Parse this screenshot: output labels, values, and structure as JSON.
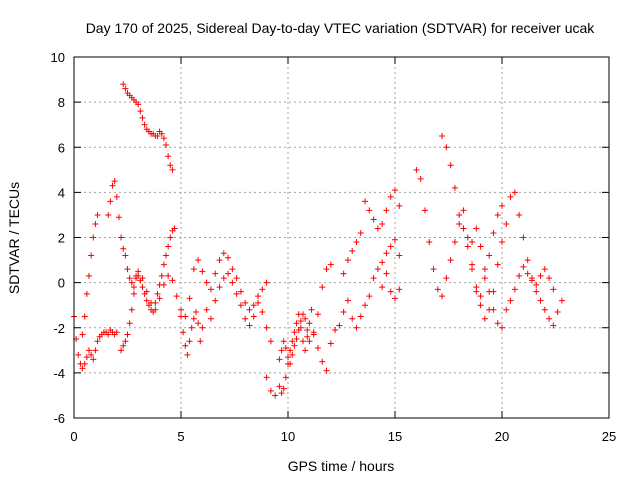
{
  "chart_data": {
    "type": "scatter",
    "title": "Day 170 of 2025, Sidereal Day-to-day VTEC variation (SDTVAR) for receiver ucak",
    "xlabel": "GPS time / hours",
    "ylabel": "SDTVAR / TECUs",
    "xlim": [
      0,
      25
    ],
    "ylim": [
      -6,
      10
    ],
    "xticks": [
      0,
      5,
      10,
      15,
      20,
      25
    ],
    "yticks": [
      -6,
      -4,
      -2,
      0,
      2,
      4,
      6,
      8,
      10
    ],
    "grid": true,
    "marker": "+",
    "series": [
      {
        "name": "SDTVAR",
        "color": "#ff0000",
        "segments": [
          {
            "x": [
              0.0,
              0.1,
              0.2,
              0.3,
              0.4,
              0.5,
              0.6,
              0.7,
              0.8,
              0.9,
              1.0,
              1.1,
              1.2,
              1.3,
              1.4,
              1.5,
              1.6,
              1.7,
              1.8,
              1.9,
              2.0
            ],
            "y": [
              -1.5,
              -2.5,
              -3.2,
              -3.6,
              -3.8,
              -3.6,
              -3.3,
              -3.0,
              -3.2,
              -3.4,
              -3.0,
              -2.6,
              -2.4,
              -2.3,
              -2.2,
              -2.2,
              -2.3,
              -2.1,
              -2.2,
              -2.3,
              -2.2
            ]
          },
          {
            "x": [
              0.4,
              0.5,
              0.6,
              0.7,
              0.8,
              0.9,
              1.0,
              1.1
            ],
            "y": [
              -2.3,
              -1.5,
              -0.5,
              0.3,
              1.2,
              2.0,
              2.6,
              3.0
            ]
          },
          {
            "x": [
              1.6,
              1.7,
              1.8,
              1.9,
              2.0,
              2.1,
              2.2,
              2.3
            ],
            "y": [
              3.0,
              3.6,
              4.3,
              4.5,
              3.8,
              2.9,
              2.0,
              1.5
            ]
          },
          {
            "x": [
              2.2,
              2.3,
              2.4,
              2.5,
              2.6,
              2.7,
              2.8,
              2.9,
              3.0,
              3.1,
              3.2,
              3.3,
              3.4,
              3.5,
              3.6,
              3.7,
              3.8,
              3.9,
              4.0,
              4.1,
              4.2,
              4.3,
              4.4,
              4.5,
              4.6,
              4.7
            ],
            "y": [
              -3.0,
              -2.8,
              -2.6,
              -2.3,
              -1.8,
              -1.2,
              -0.5,
              0.2,
              0.3,
              0.1,
              -0.2,
              -0.5,
              -0.8,
              -1.0,
              -1.2,
              -1.3,
              -0.9,
              -0.5,
              -0.1,
              0.3,
              0.8,
              1.2,
              1.6,
              2.0,
              2.3,
              2.4
            ]
          },
          {
            "x": [
              2.3,
              2.4,
              2.5,
              2.6,
              2.7,
              2.8,
              2.9,
              3.0,
              3.1,
              3.2,
              3.3,
              3.4,
              3.5,
              3.6,
              3.7,
              3.8,
              3.9,
              4.0,
              4.1,
              4.2,
              4.3,
              4.4,
              4.5,
              4.6
            ],
            "y": [
              8.8,
              8.6,
              8.4,
              8.3,
              8.2,
              8.1,
              8.0,
              7.9,
              7.6,
              7.3,
              7.0,
              6.8,
              6.7,
              6.6,
              6.6,
              6.5,
              6.5,
              6.7,
              6.6,
              6.4,
              6.1,
              5.6,
              5.2,
              5.0
            ]
          },
          {
            "x": [
              2.4,
              2.5,
              2.6,
              2.7,
              2.8,
              2.9,
              3.0,
              3.2,
              3.4,
              3.6,
              3.8,
              4.0,
              4.2,
              4.4,
              4.6,
              4.8,
              5.0,
              5.2,
              5.4,
              5.6,
              5.8,
              6.0,
              6.2,
              6.4,
              6.6,
              6.8,
              7.0,
              7.2,
              7.4,
              7.6,
              7.8,
              8.0,
              8.2,
              8.4,
              8.6,
              8.8,
              9.0
            ],
            "y": [
              1.2,
              0.6,
              0.2,
              0.0,
              -0.2,
              0.3,
              0.5,
              0.2,
              -0.4,
              -0.9,
              -1.2,
              -0.7,
              -0.1,
              0.3,
              0.1,
              -0.6,
              -1.2,
              -1.5,
              -0.7,
              0.6,
              1.0,
              0.5,
              0.0,
              -0.3,
              0.4,
              1.0,
              1.3,
              1.1,
              0.6,
              0.2,
              -0.4,
              -0.9,
              -1.2,
              -1.0,
              -0.6,
              -0.3,
              0.0
            ]
          },
          {
            "x": [
              5.0,
              5.1,
              5.2,
              5.3,
              5.4,
              5.5,
              5.6,
              5.7,
              5.8,
              5.9,
              6.0,
              6.2,
              6.4,
              6.6,
              6.8,
              7.0,
              7.2,
              7.4,
              7.6,
              7.8,
              8.0,
              8.2,
              8.4,
              8.6,
              8.8,
              9.0,
              9.2
            ],
            "y": [
              -1.5,
              -2.2,
              -2.8,
              -3.2,
              -2.6,
              -2.0,
              -1.6,
              -1.3,
              -1.8,
              -2.6,
              -2.0,
              -1.2,
              -1.6,
              -0.8,
              -0.2,
              0.2,
              0.4,
              0.0,
              -0.5,
              -1.0,
              -1.6,
              -1.9,
              -1.5,
              -0.9,
              -1.3,
              -2.0,
              -2.6
            ]
          },
          {
            "x": [
              9.0,
              9.2,
              9.4,
              9.6,
              9.7,
              9.8,
              9.9,
              10.0,
              10.1,
              10.2,
              10.3,
              10.4,
              10.5,
              10.6,
              10.7,
              10.8,
              10.9,
              11.0,
              11.1,
              11.2,
              11.4,
              11.6,
              11.8,
              12.0,
              12.2
            ],
            "y": [
              -4.2,
              -4.8,
              -5.0,
              -4.6,
              -4.9,
              -4.7,
              -4.2,
              -3.6,
              -3.0,
              -2.6,
              -2.2,
              -1.8,
              -1.4,
              -2.0,
              -2.6,
              -3.0,
              -2.4,
              -1.8,
              -1.2,
              -2.3,
              -2.9,
              -3.5,
              -3.9,
              -2.7,
              -2.1
            ]
          },
          {
            "x": [
              9.6,
              9.7,
              9.8,
              9.9,
              10.0,
              10.1,
              10.2,
              10.3,
              10.4,
              10.5,
              10.6,
              10.7,
              10.8,
              10.9,
              11.0,
              11.2,
              11.4,
              11.6,
              11.8,
              12.0
            ],
            "y": [
              -3.4,
              -3.0,
              -2.6,
              -2.9,
              -3.3,
              -3.6,
              -3.2,
              -2.8,
              -2.5,
              -2.1,
              -1.7,
              -1.4,
              -1.6,
              -2.1,
              -2.6,
              -2.2,
              -1.4,
              -0.2,
              0.6,
              0.8
            ]
          },
          {
            "x": [
              12.4,
              12.6,
              12.8,
              13.0,
              13.2,
              13.4,
              13.6
            ],
            "y": [
              -1.9,
              -1.3,
              -0.8,
              -1.6,
              -2.0,
              -1.5,
              -1.0
            ]
          },
          {
            "x": [
              12.6,
              12.8,
              13.0,
              13.2,
              13.4
            ],
            "y": [
              0.4,
              1.0,
              1.4,
              1.8,
              2.2
            ]
          },
          {
            "x": [
              13.6,
              13.8,
              14.0,
              14.2,
              14.4,
              14.6,
              14.8,
              15.0,
              15.2
            ],
            "y": [
              3.6,
              3.2,
              2.8,
              2.4,
              2.6,
              3.2,
              3.8,
              4.1,
              3.4
            ]
          },
          {
            "x": [
              13.8,
              14.0,
              14.2,
              14.4,
              14.6,
              14.8,
              15.0,
              15.2
            ],
            "y": [
              -0.6,
              0.2,
              0.6,
              0.9,
              1.3,
              1.6,
              1.9,
              1.2
            ]
          },
          {
            "x": [
              14.4,
              14.6,
              14.8,
              15.0,
              15.2
            ],
            "y": [
              -0.2,
              0.4,
              -0.4,
              -0.7,
              -0.3
            ]
          },
          {
            "x": [
              16.0,
              16.2,
              16.4,
              16.6,
              16.8,
              17.0,
              17.2,
              17.4,
              17.6,
              17.8,
              18.0,
              18.2,
              18.4,
              18.6,
              18.8,
              19.0,
              19.2,
              19.4,
              19.6,
              19.8,
              20.0
            ],
            "y": [
              5.0,
              4.6,
              3.2,
              1.8,
              0.6,
              -0.3,
              -0.6,
              0.2,
              1.0,
              1.8,
              2.6,
              3.2,
              2.0,
              0.8,
              -0.2,
              -0.6,
              0.2,
              1.2,
              2.2,
              3.0,
              3.4
            ]
          },
          {
            "x": [
              17.2,
              17.4,
              17.6,
              17.8,
              18.0,
              18.2,
              18.4,
              18.6,
              18.8,
              19.0,
              19.2,
              19.4,
              19.6,
              19.8,
              20.0,
              20.2,
              20.4,
              20.6,
              20.8,
              21.0,
              21.2,
              21.4,
              21.6,
              21.8,
              22.0,
              22.2,
              22.4,
              22.6,
              22.8
            ],
            "y": [
              6.5,
              6.0,
              5.2,
              4.2,
              3.0,
              2.4,
              1.6,
              0.6,
              -0.4,
              -1.0,
              -1.6,
              -1.2,
              -0.4,
              0.8,
              1.8,
              2.6,
              3.8,
              4.0,
              3.0,
              2.0,
              1.0,
              0.2,
              -0.4,
              -0.8,
              -1.2,
              -1.6,
              -1.9,
              -1.3,
              -0.8
            ]
          },
          {
            "x": [
              18.6,
              18.8,
              19.0,
              19.2,
              19.4,
              19.6,
              19.8,
              20.0,
              20.2,
              20.4,
              20.6,
              20.8,
              21.0,
              21.2,
              21.4,
              21.6,
              21.8,
              22.0,
              22.2,
              22.4
            ],
            "y": [
              1.8,
              2.4,
              1.6,
              0.6,
              -0.4,
              -1.2,
              -1.8,
              -2.0,
              -1.2,
              -0.8,
              -0.3,
              0.3,
              0.7,
              0.4,
              0.1,
              -0.1,
              0.3,
              0.6,
              0.2,
              -0.3
            ]
          }
        ]
      }
    ]
  }
}
